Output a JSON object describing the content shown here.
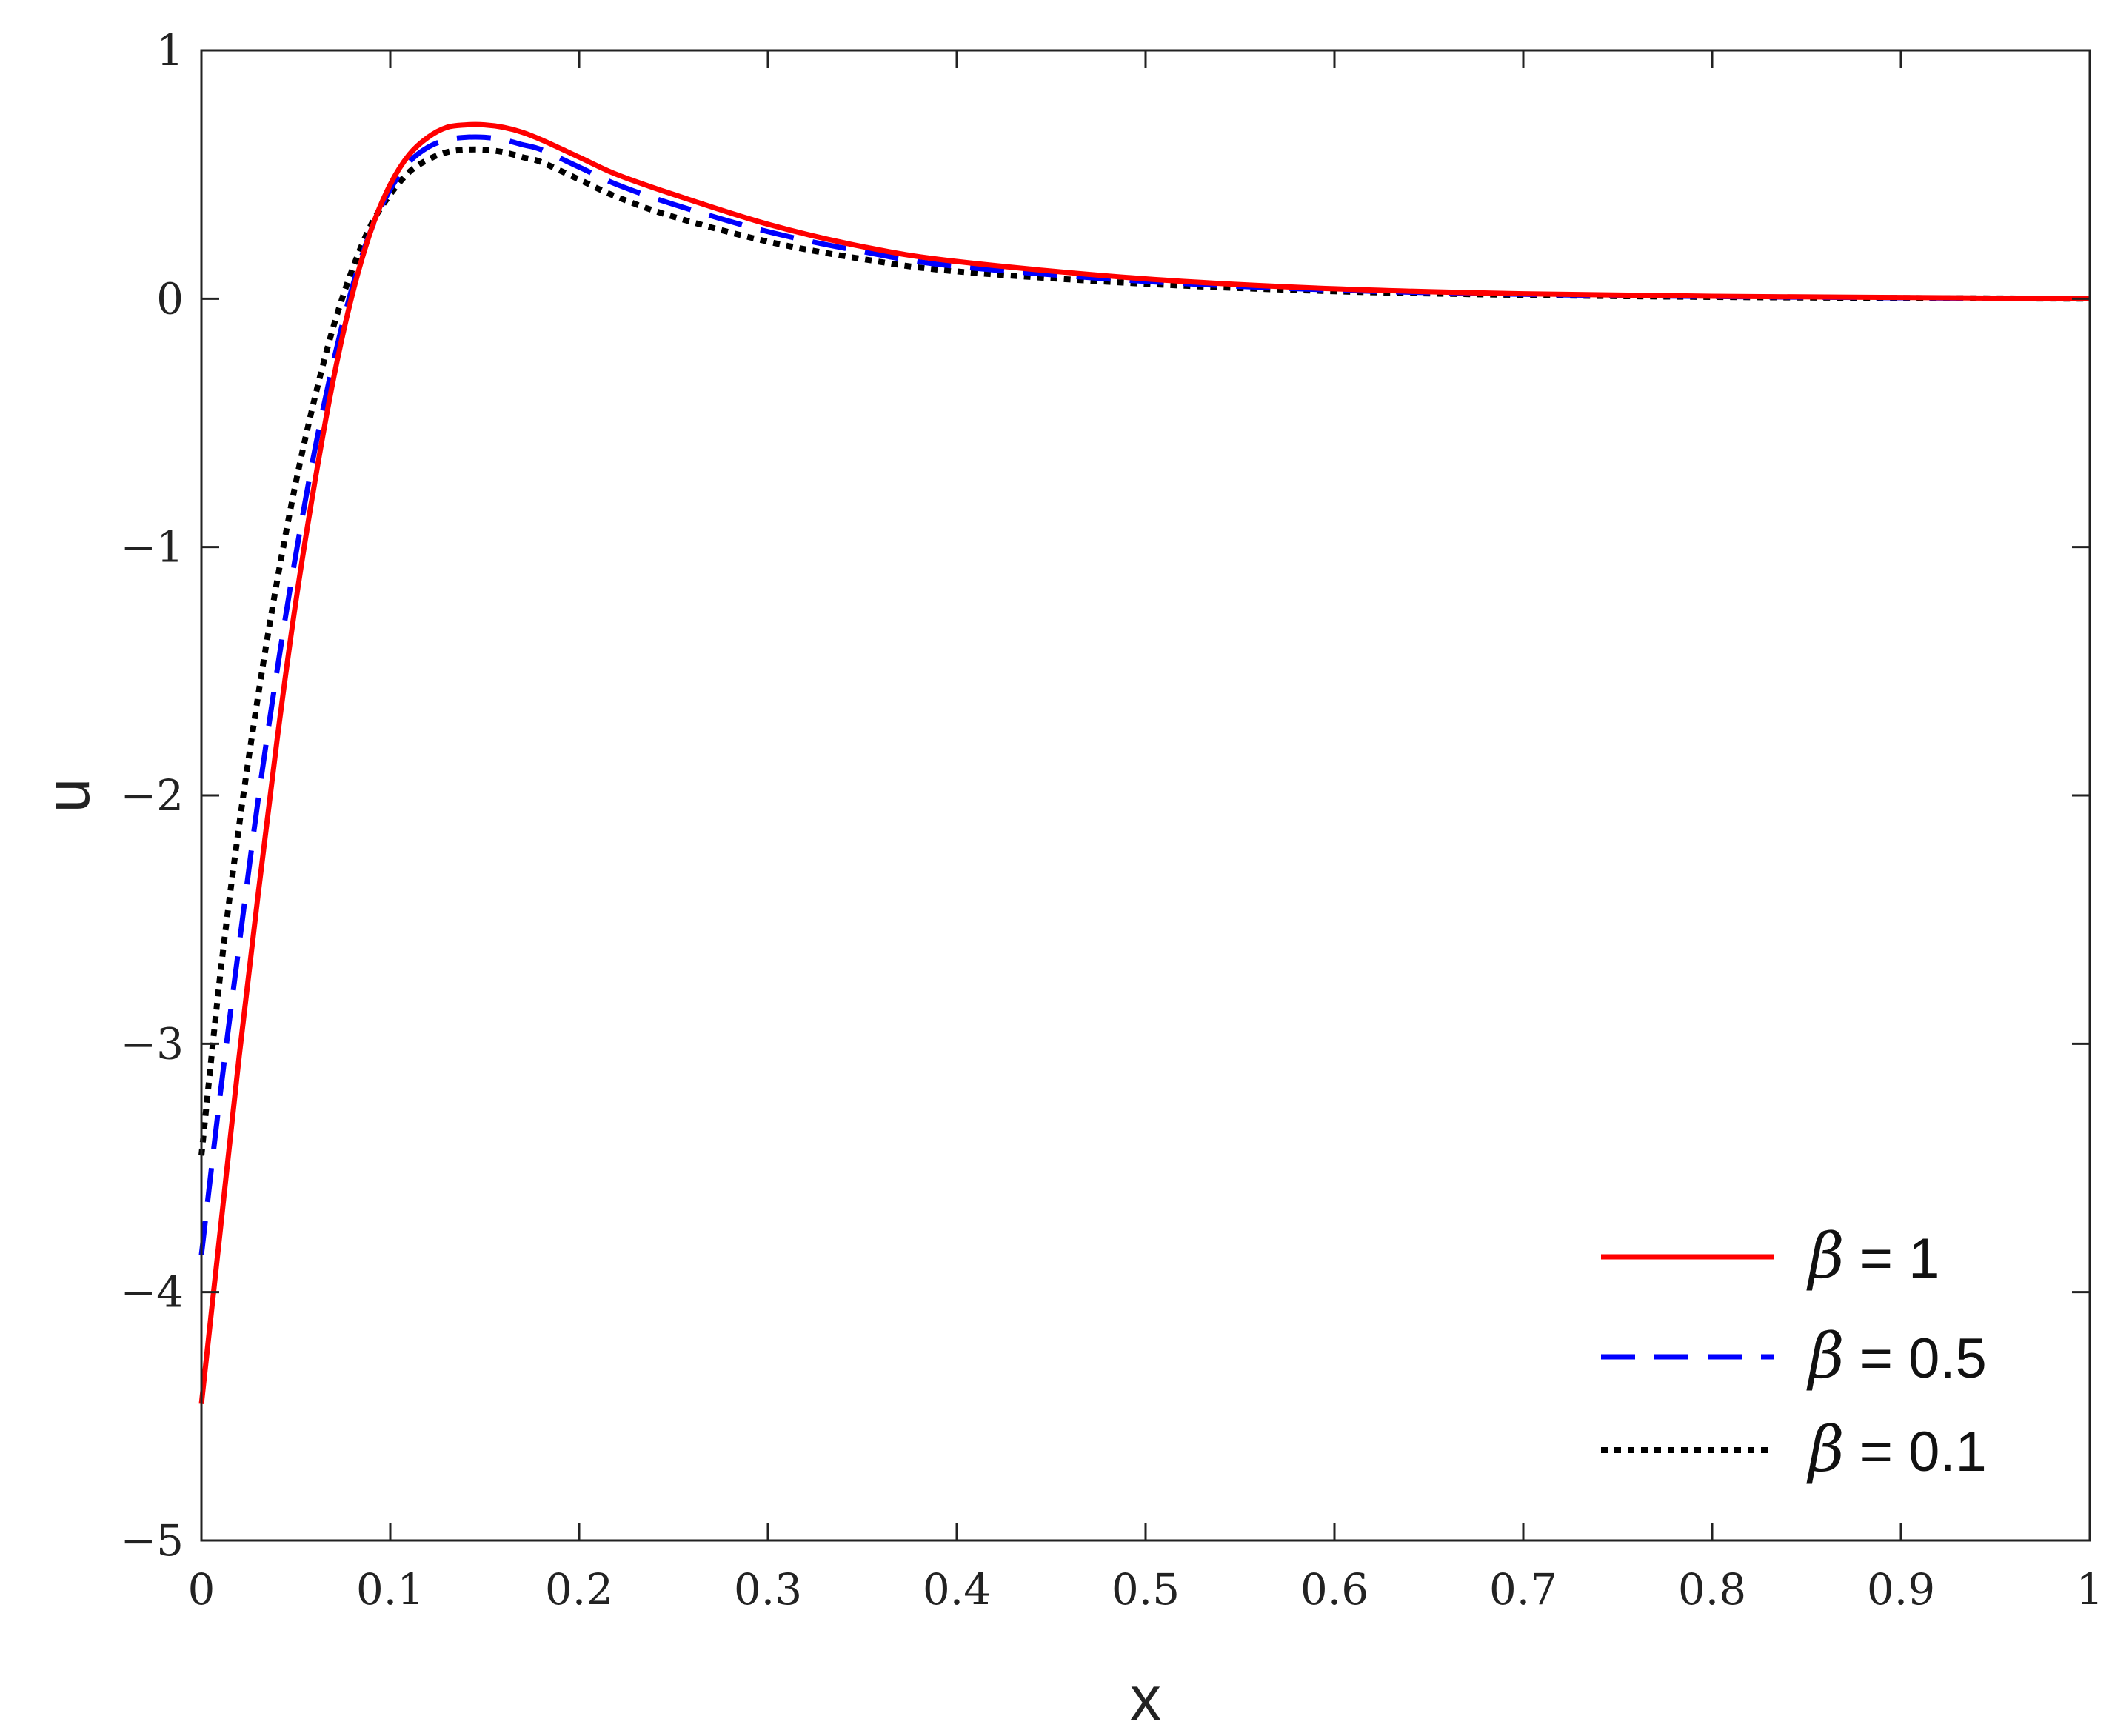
{
  "chart_data": {
    "type": "line",
    "xlabel": "x",
    "ylabel": "u",
    "xlim": [
      0,
      1
    ],
    "ylim": [
      -5,
      1
    ],
    "xticks": [
      0,
      0.1,
      0.2,
      0.3,
      0.4,
      0.5,
      0.6,
      0.7,
      0.8,
      0.9,
      1
    ],
    "xtick_labels": [
      "0",
      "0.1",
      "0.2",
      "0.3",
      "0.4",
      "0.5",
      "0.6",
      "0.7",
      "0.8",
      "0.9",
      "1"
    ],
    "yticks": [
      -5,
      -4,
      -3,
      -2,
      -1,
      0,
      1
    ],
    "ytick_labels": [
      "−5",
      "−4",
      "−3",
      "−2",
      "−1",
      "0",
      "1"
    ],
    "grid": false,
    "legend_position": "bottom-right",
    "series": [
      {
        "name": "= 1",
        "symbol": "β",
        "color": "#ff0000",
        "style": "solid",
        "x": [
          0,
          0.01,
          0.02,
          0.03,
          0.04,
          0.05,
          0.06,
          0.07,
          0.08,
          0.09,
          0.1,
          0.11,
          0.12,
          0.13,
          0.14,
          0.15,
          0.16,
          0.17,
          0.18,
          0.2,
          0.22,
          0.25,
          0.3,
          0.35,
          0.4,
          0.5,
          0.6,
          0.7,
          0.8,
          0.9,
          1.0
        ],
        "y": [
          -4.45,
          -3.75,
          -3.05,
          -2.4,
          -1.78,
          -1.22,
          -0.74,
          -0.32,
          0.02,
          0.28,
          0.46,
          0.58,
          0.65,
          0.69,
          0.7,
          0.7,
          0.69,
          0.67,
          0.64,
          0.57,
          0.5,
          0.42,
          0.3,
          0.21,
          0.15,
          0.08,
          0.04,
          0.02,
          0.01,
          0.005,
          0.0
        ]
      },
      {
        "name": "= 0.5",
        "symbol": "β",
        "color": "#0000ff",
        "style": "dashed",
        "x": [
          0,
          0.01,
          0.02,
          0.03,
          0.04,
          0.05,
          0.06,
          0.07,
          0.08,
          0.09,
          0.1,
          0.11,
          0.12,
          0.13,
          0.14,
          0.15,
          0.16,
          0.17,
          0.18,
          0.2,
          0.22,
          0.25,
          0.3,
          0.35,
          0.4,
          0.5,
          0.6,
          0.7,
          0.8,
          0.9,
          1.0
        ],
        "y": [
          -3.85,
          -3.2,
          -2.6,
          -2.02,
          -1.5,
          -1.03,
          -0.61,
          -0.25,
          0.05,
          0.28,
          0.44,
          0.55,
          0.61,
          0.64,
          0.65,
          0.65,
          0.64,
          0.62,
          0.6,
          0.53,
          0.46,
          0.38,
          0.27,
          0.19,
          0.13,
          0.07,
          0.035,
          0.018,
          0.009,
          0.004,
          0.0
        ]
      },
      {
        "name": "= 0.1",
        "symbol": "β",
        "color": "#000000",
        "style": "dotted",
        "x": [
          0,
          0.01,
          0.02,
          0.03,
          0.04,
          0.05,
          0.06,
          0.07,
          0.08,
          0.09,
          0.1,
          0.11,
          0.12,
          0.13,
          0.14,
          0.15,
          0.16,
          0.17,
          0.18,
          0.2,
          0.22,
          0.25,
          0.3,
          0.35,
          0.4,
          0.5,
          0.6,
          0.7,
          0.8,
          0.9,
          1.0
        ],
        "y": [
          -3.45,
          -2.72,
          -2.12,
          -1.6,
          -1.14,
          -0.74,
          -0.4,
          -0.11,
          0.12,
          0.3,
          0.42,
          0.51,
          0.56,
          0.59,
          0.6,
          0.6,
          0.59,
          0.57,
          0.55,
          0.48,
          0.41,
          0.33,
          0.23,
          0.16,
          0.11,
          0.06,
          0.03,
          0.015,
          0.007,
          0.003,
          0.0
        ]
      }
    ]
  }
}
